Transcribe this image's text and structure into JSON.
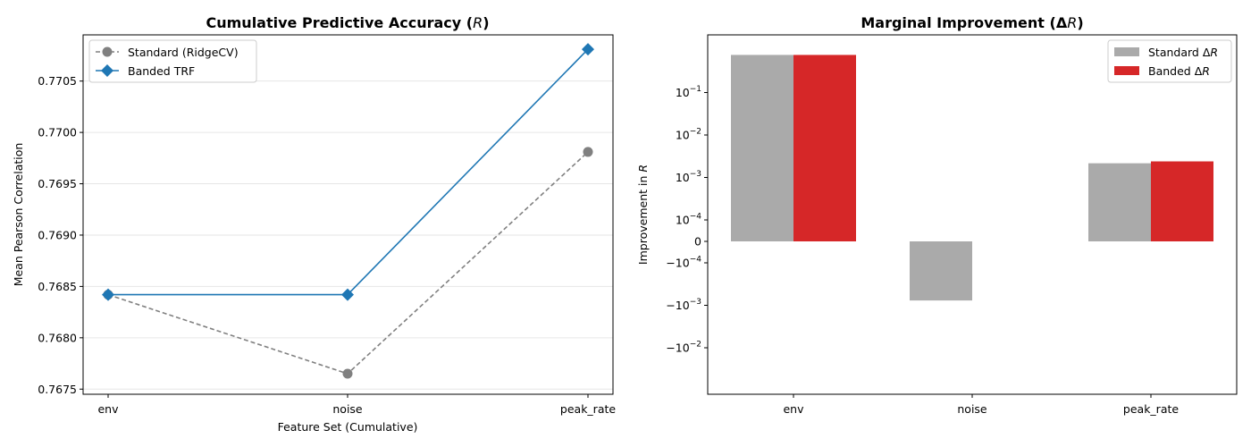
{
  "chart_data": [
    {
      "type": "line",
      "title": "Cumulative Predictive Accuracy (R)",
      "title_main": "Cumulative Predictive Accuracy (",
      "title_var": "R",
      "title_end": ")",
      "xlabel": "Feature Set (Cumulative)",
      "ylabel": "Mean Pearson Correlation",
      "categories": [
        "env",
        "noise",
        "peak_rate"
      ],
      "ylim": [
        0.76745,
        0.77095
      ],
      "yticks": [
        0.7675,
        0.768,
        0.7685,
        0.769,
        0.7695,
        0.77,
        0.7705
      ],
      "ytick_labels": [
        "0.7675",
        "0.7680",
        "0.7685",
        "0.7690",
        "0.7695",
        "0.7700",
        "0.7705"
      ],
      "grid": "y",
      "legend_position": "upper-left",
      "series": [
        {
          "name": "Standard (RidgeCV)",
          "values": [
            0.76842,
            0.76765,
            0.76981
          ],
          "color": "#808080",
          "linestyle": "dashed",
          "marker": "circle"
        },
        {
          "name": "Banded TRF",
          "values": [
            0.76842,
            0.76842,
            0.77081
          ],
          "color": "#1f77b4",
          "linestyle": "solid",
          "marker": "diamond"
        }
      ]
    },
    {
      "type": "bar",
      "title": "Marginal Improvement (ΔR)",
      "title_main": "Marginal Improvement (Δ",
      "title_var": "R",
      "title_end": ")",
      "xlabel": "",
      "ylabel": "Improvement in R",
      "ylabel_main": "Improvement in ",
      "ylabel_var": "R",
      "yscale": "symlog",
      "categories": [
        "env",
        "noise",
        "peak_rate"
      ],
      "yticks": [
        {
          "value": -0.01,
          "base": "−10",
          "exp": "−2"
        },
        {
          "value": -0.001,
          "base": "−10",
          "exp": "−3"
        },
        {
          "value": -0.0001,
          "base": "−10",
          "exp": "−4"
        },
        {
          "value": 0,
          "base": "0",
          "exp": ""
        },
        {
          "value": 0.0001,
          "base": "10",
          "exp": "−4"
        },
        {
          "value": 0.001,
          "base": "10",
          "exp": "−3"
        },
        {
          "value": 0.01,
          "base": "10",
          "exp": "−2"
        },
        {
          "value": 0.1,
          "base": "10",
          "exp": "−1"
        }
      ],
      "legend_position": "upper-right",
      "series": [
        {
          "name": "Standard ΔR",
          "name_main": "Standard Δ",
          "name_var": "R",
          "values": [
            0.7684,
            -0.00077,
            0.00216
          ],
          "color": "#aaaaaa"
        },
        {
          "name": "Banded ΔR",
          "name_main": "Banded Δ",
          "name_var": "R",
          "values": [
            0.7684,
            0.0,
            0.00239
          ],
          "color": "#d62728"
        }
      ]
    }
  ]
}
